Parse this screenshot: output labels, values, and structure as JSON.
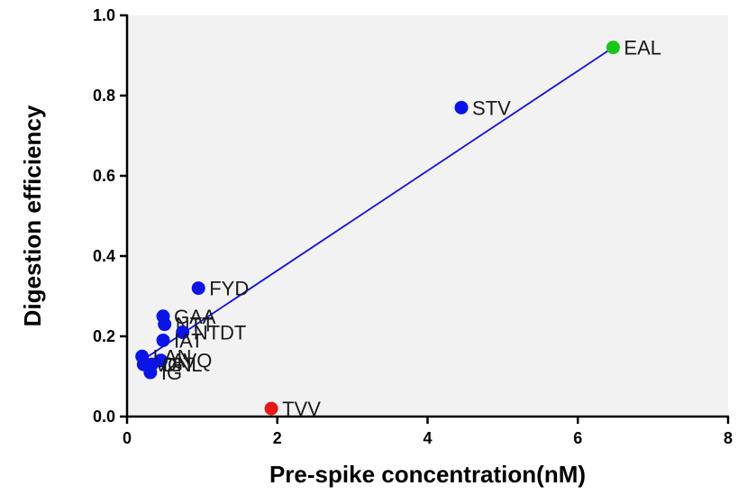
{
  "chart_data": {
    "type": "scatter",
    "title": "",
    "xlabel": "Pre-spike concentration(nM)",
    "ylabel": "Digestion efficiency",
    "xlim": [
      0,
      8
    ],
    "ylim": [
      0,
      1.0
    ],
    "xticks": [
      "0",
      "2",
      "4",
      "6",
      "8"
    ],
    "yticks": [
      "0.0",
      "0.2",
      "0.4",
      "0.6",
      "0.8",
      "1.0"
    ],
    "grid": false,
    "background": "#f2f2f2",
    "colors": {
      "default": "#0a14e6",
      "high": "#17c617",
      "low": "#e61919",
      "fit": "#1010d8"
    },
    "points": [
      {
        "label": "EAL",
        "x": 6.47,
        "y": 0.92,
        "color": "high"
      },
      {
        "label": "STV",
        "x": 4.45,
        "y": 0.77,
        "color": "default"
      },
      {
        "label": "FYD",
        "x": 0.95,
        "y": 0.32,
        "color": "default"
      },
      {
        "label": "GAA",
        "x": 0.48,
        "y": 0.25,
        "color": "default"
      },
      {
        "label": "NTT",
        "x": 0.5,
        "y": 0.23,
        "color": "default"
      },
      {
        "label": "NTDT",
        "x": 0.74,
        "y": 0.21,
        "color": "default"
      },
      {
        "label": "IAT",
        "x": 0.48,
        "y": 0.19,
        "color": "default"
      },
      {
        "label": "LAN",
        "x": 0.2,
        "y": 0.15,
        "color": "default"
      },
      {
        "label": "AVQ",
        "x": 0.45,
        "y": 0.14,
        "color": "default"
      },
      {
        "label": "VGT",
        "x": 0.22,
        "y": 0.13,
        "color": "default"
      },
      {
        "label": "DNL",
        "x": 0.33,
        "y": 0.13,
        "color": "default"
      },
      {
        "label": "IG",
        "x": 0.31,
        "y": 0.11,
        "color": "default"
      },
      {
        "label": "TVV",
        "x": 1.92,
        "y": 0.02,
        "color": "low"
      }
    ],
    "fit_line": {
      "x": [
        0.2,
        6.47
      ],
      "y": [
        0.14,
        0.92
      ]
    }
  }
}
